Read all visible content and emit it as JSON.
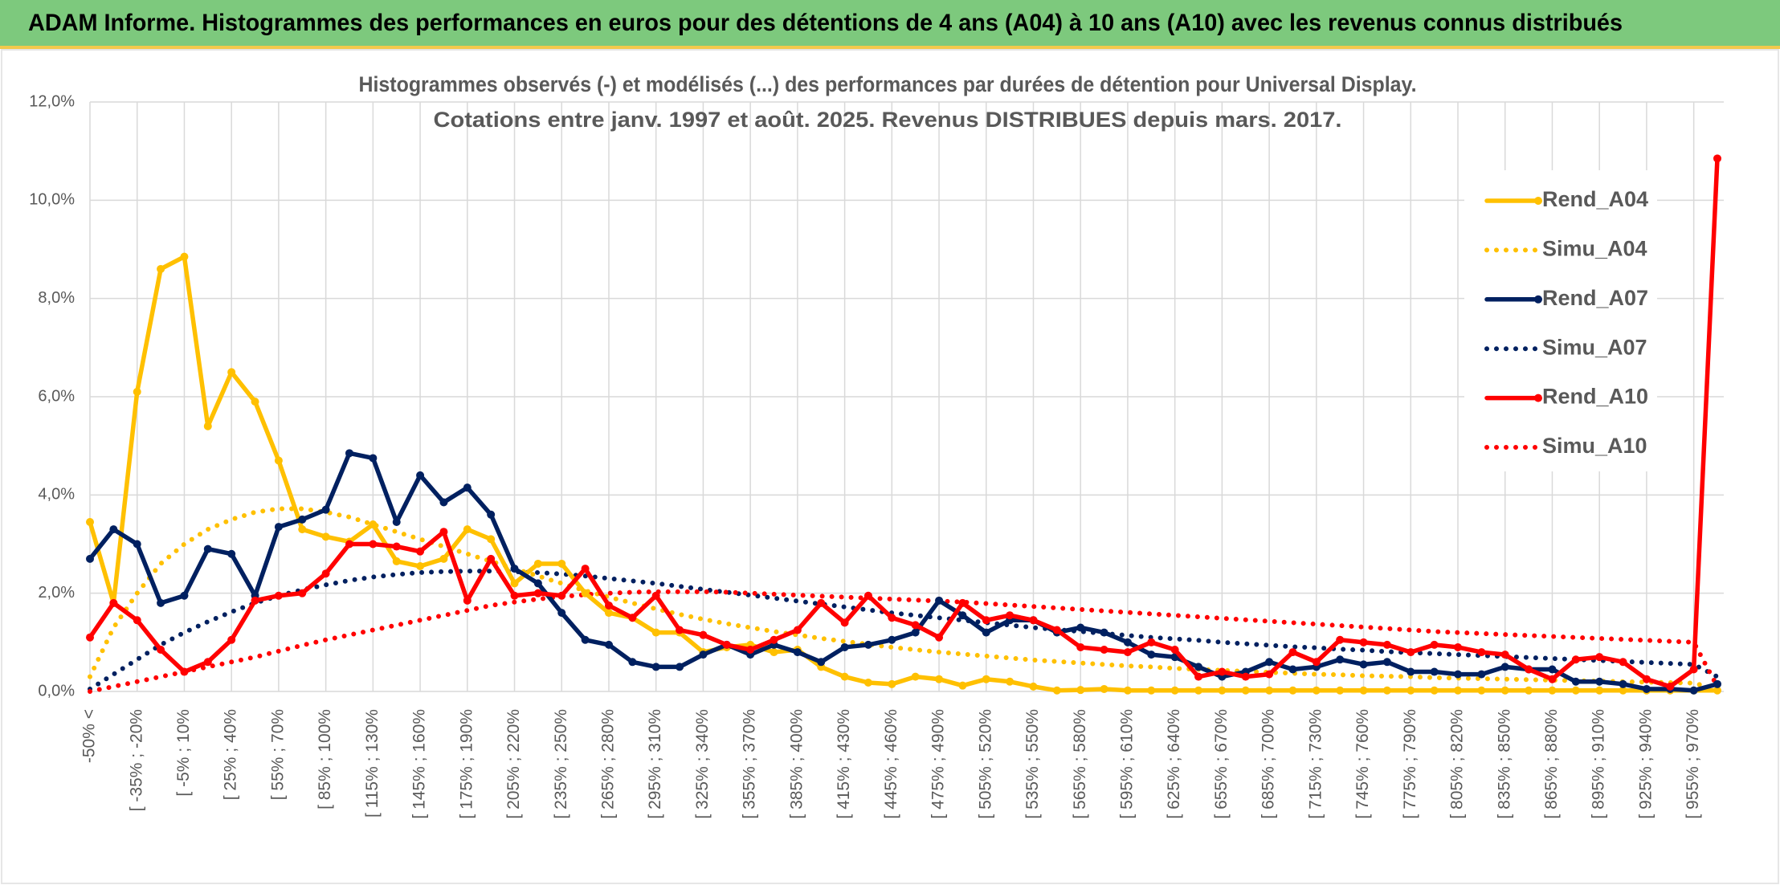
{
  "header": {
    "title": "ADAM Informe. Histogrammes des performances en euros pour des détentions de 4 ans (A04) à 10 ans (A10) avec les revenus connus distribués"
  },
  "chart_data": {
    "type": "line",
    "title": "Histogrammes observés (-) et modélisés (...) des performances par durées de détention pour Universal Display.",
    "subtitle": "Cotations entre janv. 1997 et août. 2025. Revenus DISTRIBUES depuis mars. 2017.",
    "categories": [
      "-50% <",
      null,
      "[ -35% ; -20%",
      null,
      "[ -5% ; 10%",
      null,
      "[ 25% ; 40%",
      null,
      "[ 55% ; 70%",
      null,
      "[ 85% ; 100%",
      null,
      "[ 115% ; 130%",
      null,
      "[ 145% ; 160%",
      null,
      "[ 175% ; 190%",
      null,
      "[ 205% ; 220%",
      null,
      "[ 235% ; 250%",
      null,
      "[ 265% ; 280%",
      null,
      "[ 295% ; 310%",
      null,
      "[ 325% ; 340%",
      null,
      "[ 355% ; 370%",
      null,
      "[ 385% ; 400%",
      null,
      "[ 415% ; 430%",
      null,
      "[ 445% ; 460%",
      null,
      "[ 475% ; 490%",
      null,
      "[ 505% ; 520%",
      null,
      "[ 535% ; 550%",
      null,
      "[ 565% ; 580%",
      null,
      "[ 595% ; 610%",
      null,
      "[ 625% ; 640%",
      null,
      "[ 655% ; 670%",
      null,
      "[ 685% ; 700%",
      null,
      "[ 715% ; 730%",
      null,
      "[ 745% ; 760%",
      null,
      "[ 775% ; 790%",
      null,
      "[ 805% ; 820%",
      null,
      "[ 835% ; 850%",
      null,
      "[ 865% ; 880%",
      null,
      "[ 895% ; 910%",
      null,
      "[ 925% ; 940%",
      null,
      "[ 955% ; 970%",
      null
    ],
    "series": [
      {
        "name": "Rend_A04",
        "color": "#FFC000",
        "style": "solid",
        "markers": true,
        "values": [
          3.45,
          1.8,
          6.1,
          8.6,
          8.85,
          5.4,
          6.5,
          5.9,
          4.7,
          3.3,
          3.15,
          3.05,
          3.4,
          2.65,
          2.55,
          2.7,
          3.3,
          3.1,
          2.2,
          2.6,
          2.6,
          2.0,
          1.6,
          1.5,
          1.2,
          1.2,
          0.8,
          0.9,
          0.95,
          0.8,
          0.85,
          0.5,
          0.3,
          0.18,
          0.15,
          0.3,
          0.25,
          0.12,
          0.25,
          0.2,
          0.1,
          0.02,
          0.03,
          0.05,
          0.02,
          0.02,
          0.02,
          0.02,
          0.02,
          0.02,
          0.02,
          0.02,
          0.02,
          0.02,
          0.02,
          0.02,
          0.02,
          0.02,
          0.02,
          0.02,
          0.02,
          0.02,
          0.02,
          0.02,
          0.02,
          0.02,
          0.02,
          0.02,
          0.02,
          0.02
        ]
      },
      {
        "name": "Simu_A04",
        "color": "#FFC000",
        "style": "dotted",
        "markers": false,
        "values": [
          0.3,
          1.3,
          2.0,
          2.6,
          3.0,
          3.3,
          3.5,
          3.65,
          3.72,
          3.72,
          3.65,
          3.55,
          3.4,
          3.25,
          3.1,
          2.95,
          2.8,
          2.65,
          2.5,
          2.35,
          2.2,
          2.05,
          1.92,
          1.8,
          1.68,
          1.57,
          1.47,
          1.38,
          1.3,
          1.22,
          1.15,
          1.08,
          1.02,
          0.96,
          0.9,
          0.85,
          0.8,
          0.76,
          0.72,
          0.68,
          0.64,
          0.61,
          0.58,
          0.55,
          0.52,
          0.5,
          0.47,
          0.45,
          0.43,
          0.41,
          0.39,
          0.37,
          0.35,
          0.34,
          0.32,
          0.31,
          0.3,
          0.28,
          0.27,
          0.26,
          0.25,
          0.24,
          0.23,
          0.22,
          0.21,
          0.2,
          0.19,
          0.18,
          0.17,
          0.05
        ]
      },
      {
        "name": "Rend_A07",
        "color": "#002060",
        "style": "solid",
        "markers": true,
        "values": [
          2.7,
          3.3,
          3.0,
          1.8,
          1.95,
          2.9,
          2.8,
          1.95,
          3.35,
          3.5,
          3.7,
          4.85,
          4.75,
          3.45,
          4.4,
          3.85,
          4.15,
          3.6,
          2.5,
          2.2,
          1.6,
          1.05,
          0.95,
          0.6,
          0.5,
          0.5,
          0.75,
          0.95,
          0.75,
          0.95,
          0.8,
          0.6,
          0.9,
          0.95,
          1.05,
          1.2,
          1.85,
          1.55,
          1.2,
          1.45,
          1.45,
          1.2,
          1.3,
          1.2,
          1.0,
          0.75,
          0.7,
          0.5,
          0.3,
          0.4,
          0.6,
          0.45,
          0.5,
          0.65,
          0.55,
          0.6,
          0.4,
          0.4,
          0.35,
          0.35,
          0.5,
          0.45,
          0.45,
          0.2,
          0.2,
          0.15,
          0.05,
          0.05,
          0.02,
          0.15
        ]
      },
      {
        "name": "Simu_A07",
        "color": "#002060",
        "style": "dotted",
        "markers": false,
        "values": [
          0.05,
          0.35,
          0.65,
          0.95,
          1.2,
          1.42,
          1.62,
          1.8,
          1.95,
          2.07,
          2.17,
          2.26,
          2.33,
          2.38,
          2.42,
          2.44,
          2.45,
          2.45,
          2.44,
          2.42,
          2.39,
          2.35,
          2.3,
          2.25,
          2.2,
          2.14,
          2.08,
          2.02,
          1.96,
          1.9,
          1.84,
          1.78,
          1.72,
          1.66,
          1.6,
          1.55,
          1.5,
          1.45,
          1.4,
          1.35,
          1.3,
          1.26,
          1.22,
          1.18,
          1.14,
          1.1,
          1.07,
          1.04,
          1.0,
          0.97,
          0.94,
          0.91,
          0.89,
          0.86,
          0.84,
          0.81,
          0.79,
          0.77,
          0.75,
          0.73,
          0.71,
          0.69,
          0.67,
          0.65,
          0.63,
          0.61,
          0.59,
          0.57,
          0.55,
          0.3
        ]
      },
      {
        "name": "Rend_A10",
        "color": "#FF0000",
        "style": "solid",
        "markers": true,
        "values": [
          1.1,
          1.8,
          1.45,
          0.85,
          0.4,
          0.6,
          1.05,
          1.85,
          1.95,
          2.0,
          2.4,
          3.0,
          3.0,
          2.95,
          2.85,
          3.25,
          1.85,
          2.7,
          1.95,
          2.0,
          1.95,
          2.5,
          1.75,
          1.5,
          1.95,
          1.25,
          1.15,
          0.95,
          0.85,
          1.05,
          1.25,
          1.8,
          1.4,
          1.95,
          1.5,
          1.35,
          1.1,
          1.8,
          1.45,
          1.55,
          1.45,
          1.25,
          0.9,
          0.85,
          0.8,
          1.0,
          0.85,
          0.3,
          0.4,
          0.3,
          0.35,
          0.8,
          0.6,
          1.05,
          1.0,
          0.95,
          0.8,
          0.95,
          0.9,
          0.8,
          0.75,
          0.45,
          0.25,
          0.65,
          0.7,
          0.6,
          0.25,
          0.1,
          0.45,
          10.85
        ]
      },
      {
        "name": "Simu_A10",
        "color": "#FF0000",
        "style": "dotted",
        "markers": false,
        "values": [
          0,
          0.1,
          0.2,
          0.3,
          0.4,
          0.5,
          0.6,
          0.7,
          0.82,
          0.94,
          1.05,
          1.15,
          1.25,
          1.35,
          1.45,
          1.55,
          1.65,
          1.75,
          1.82,
          1.88,
          1.93,
          1.97,
          2.0,
          2.02,
          2.03,
          2.03,
          2.03,
          2.02,
          2.0,
          1.98,
          1.96,
          1.94,
          1.92,
          1.9,
          1.88,
          1.86,
          1.84,
          1.82,
          1.79,
          1.76,
          1.73,
          1.7,
          1.67,
          1.64,
          1.61,
          1.58,
          1.55,
          1.52,
          1.49,
          1.46,
          1.43,
          1.4,
          1.37,
          1.34,
          1.31,
          1.28,
          1.25,
          1.22,
          1.2,
          1.18,
          1.16,
          1.14,
          1.12,
          1.1,
          1.08,
          1.06,
          1.04,
          1.02,
          1.0,
          0.1
        ]
      }
    ],
    "ylim": [
      0,
      12
    ],
    "yticks": [
      {
        "value": 0,
        "label": "0,0%"
      },
      {
        "value": 2,
        "label": "2,0%"
      },
      {
        "value": 4,
        "label": "4,0%"
      },
      {
        "value": 6,
        "label": "6,0%"
      },
      {
        "value": 8,
        "label": "8,0%"
      },
      {
        "value": 10,
        "label": "10,0%"
      },
      {
        "value": 12,
        "label": "12,0%"
      }
    ],
    "grid": true,
    "legend": "right"
  }
}
